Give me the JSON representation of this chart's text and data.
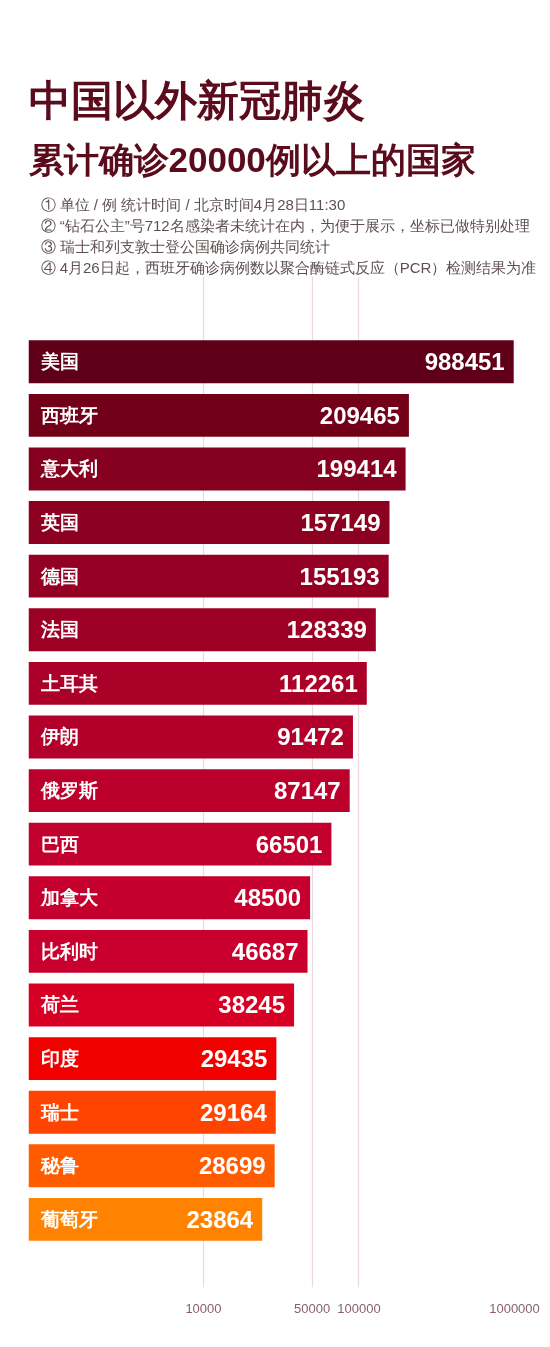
{
  "chart_data": {
    "type": "bar",
    "orientation": "horizontal",
    "title": "中国以外新冠肺炎",
    "subtitle": "累计确诊20000例以上的国家",
    "annotations": [
      "① 单位 / 例   统计时间 / 北京时间4月28日11:30",
      "② “钻石公主”号712名感染者未统计在内，为便于展示，坐标已做特别处理",
      "③ 瑞士和列支敦士登公国确诊病例共同统计",
      "④ 4月26日起，西班牙确诊病例数以聚合酶链式反应（PCR）检测结果为准"
    ],
    "categories": [
      "美国",
      "西班牙",
      "意大利",
      "英国",
      "德国",
      "法国",
      "土耳其",
      "伊朗",
      "俄罗斯",
      "巴西",
      "加拿大",
      "比利时",
      "荷兰",
      "印度",
      "瑞士",
      "秘鲁",
      "葡萄牙"
    ],
    "values": [
      988451,
      209465,
      199414,
      157149,
      155193,
      128339,
      112261,
      91472,
      87147,
      66501,
      48500,
      46687,
      38245,
      29435,
      29164,
      28699,
      23864
    ],
    "colors": [
      "#5f0018",
      "#730019",
      "#86001f",
      "#8c0021",
      "#930023",
      "#9d0025",
      "#ab0028",
      "#b3002a",
      "#bb002c",
      "#c1002d",
      "#c5002e",
      "#c9002e",
      "#d70024",
      "#f20000",
      "#ff4300",
      "#ff5c00",
      "#ff8200"
    ],
    "xlim": [
      750,
      1000000
    ],
    "xticks": [
      10000,
      50000,
      100000,
      1000000
    ],
    "log": "x",
    "grid": "x",
    "data_labels": true
  }
}
